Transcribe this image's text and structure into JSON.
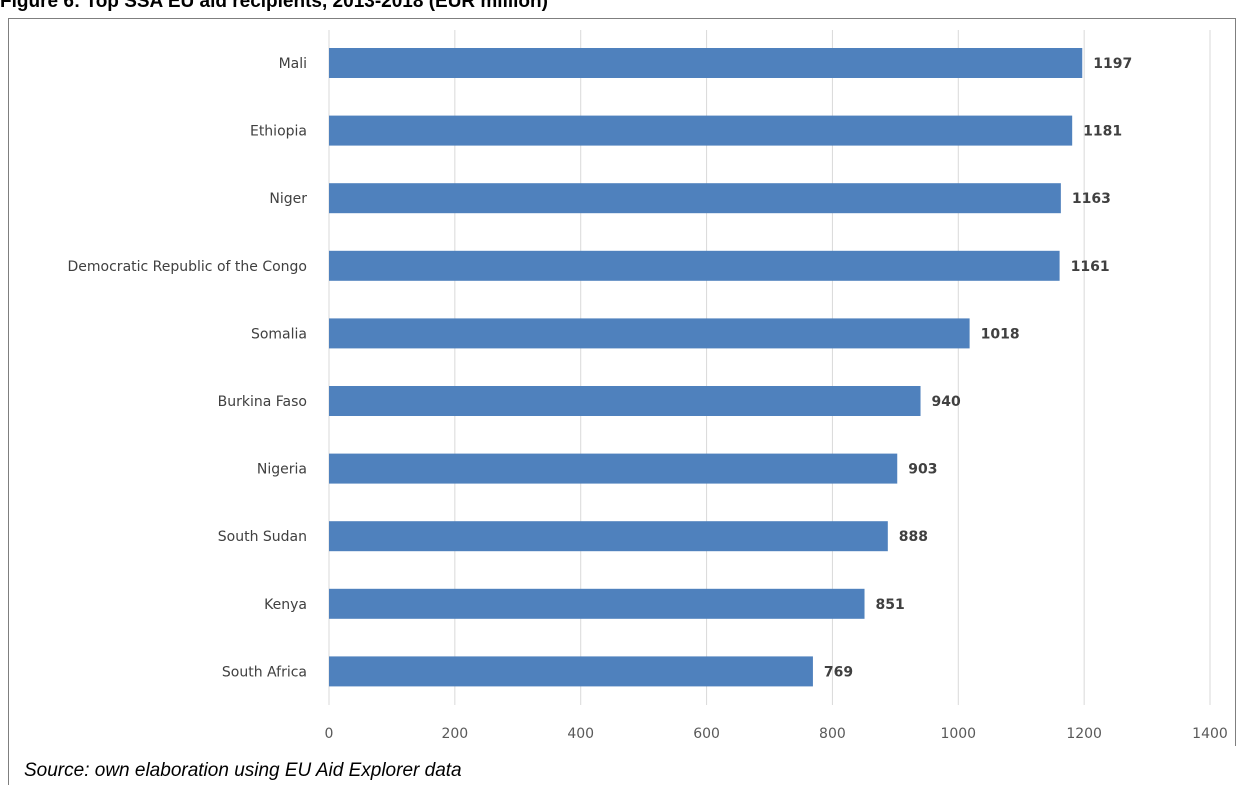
{
  "figure": {
    "title": "Figure 6: Top SSA EU aid recipients, 2013-2018 (EUR million)",
    "source": "Source: own elaboration using EU Aid Explorer data"
  },
  "colors": {
    "bar": "#4f81bd",
    "grid": "#d9d9d9"
  },
  "chart_data": {
    "type": "bar",
    "orientation": "horizontal",
    "categories": [
      "Mali",
      "Ethiopia",
      "Niger",
      "Democratic Republic of the Congo",
      "Somalia",
      "Burkina Faso",
      "Nigeria",
      "South Sudan",
      "Kenya",
      "South Africa"
    ],
    "values": [
      1197,
      1181,
      1163,
      1161,
      1018,
      940,
      903,
      888,
      851,
      769
    ],
    "xlim": [
      0,
      1400
    ],
    "xticks": [
      0,
      200,
      400,
      600,
      800,
      1000,
      1200,
      1400
    ],
    "grid": true,
    "data_labels": true
  }
}
